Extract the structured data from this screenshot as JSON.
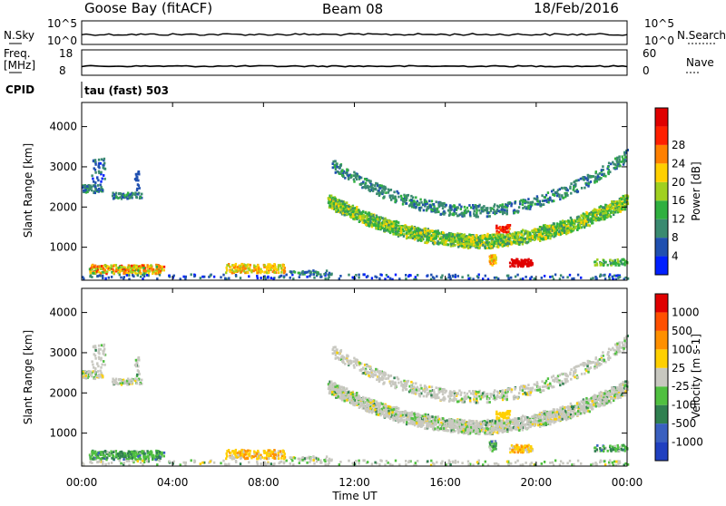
{
  "header": {
    "site": "Goose Bay (fitACF)",
    "beam": "Beam 08",
    "date": "18/Feb/2016"
  },
  "top_panels": {
    "nsky_label": "N.Sky",
    "nsky_ticks": [
      "10^5",
      "10^0"
    ],
    "nsearch_label": "N.Search",
    "nsearch_ticks": [
      "10^5",
      "10^0"
    ],
    "freq_label_1": "Freq.",
    "freq_label_2": "[MHz]",
    "freq_ticks": [
      "18",
      "8"
    ],
    "nave_label": "Nave",
    "nave_ticks": [
      "60",
      "0"
    ],
    "cpid_label": "CPID",
    "cpid_text": "tau (fast) 503"
  },
  "chart_data": [
    {
      "type": "heatmap",
      "name": "power",
      "ylabel": "Slant Range [km]",
      "xlabel": "Time UT",
      "x_ticks": [
        "00:00",
        "04:00",
        "08:00",
        "12:00",
        "16:00",
        "20:00",
        "00:00"
      ],
      "x_range_hours": [
        0,
        24
      ],
      "y_ticks": [
        "1000",
        "2000",
        "3000",
        "4000"
      ],
      "ylim_km": [
        180,
        4600
      ],
      "colorbar_label": "Power [dB]",
      "colorbar_ticks": [
        "4",
        "8",
        "12",
        "16",
        "20",
        "24",
        "28"
      ],
      "colors": [
        "#0020ff",
        "#2050b0",
        "#3a8a70",
        "#30b040",
        "#a0d020",
        "#ffd000",
        "#ff8000",
        "#ff2000",
        "#e00000"
      ],
      "features": [
        {
          "desc": "low range band",
          "t": [
            0.3,
            3.5
          ],
          "range": [
            350,
            550
          ],
          "level": 5
        },
        {
          "desc": "morning band",
          "t": [
            6.5,
            8.8
          ],
          "range": [
            380,
            560
          ],
          "level": 4
        },
        {
          "desc": "early 2400km",
          "t": [
            0.0,
            2.6
          ],
          "range": [
            2250,
            2500
          ],
          "level": 2
        },
        {
          "desc": "U-shaped arc",
          "t": [
            10.8,
            24
          ],
          "range_min": 1050,
          "range_max": 2500,
          "level": 3
        },
        {
          "desc": "hot spot",
          "t": [
            18.8,
            19.8
          ],
          "range": [
            520,
            700
          ],
          "level": 8
        }
      ]
    },
    {
      "type": "heatmap",
      "name": "velocity",
      "ylabel": "Slant Range [km]",
      "xlabel": "Time UT",
      "x_ticks": [
        "00:00",
        "04:00",
        "08:00",
        "12:00",
        "16:00",
        "20:00",
        "00:00"
      ],
      "x_range_hours": [
        0,
        24
      ],
      "y_ticks": [
        "1000",
        "2000",
        "3000",
        "4000"
      ],
      "ylim_km": [
        180,
        4600
      ],
      "colorbar_label": "Velocity [m s-1]",
      "colorbar_ticks": [
        "1000",
        "500",
        "100",
        "25",
        "-25",
        "-100",
        "-500",
        "-1000"
      ],
      "colors": [
        "#2040c0",
        "#3a60c0",
        "#308050",
        "#50c040",
        "#c8c8c0",
        "#ffd000",
        "#ff9000",
        "#ff5000",
        "#e00000"
      ]
    }
  ],
  "footer": {
    "xlabel": "Time UT"
  }
}
